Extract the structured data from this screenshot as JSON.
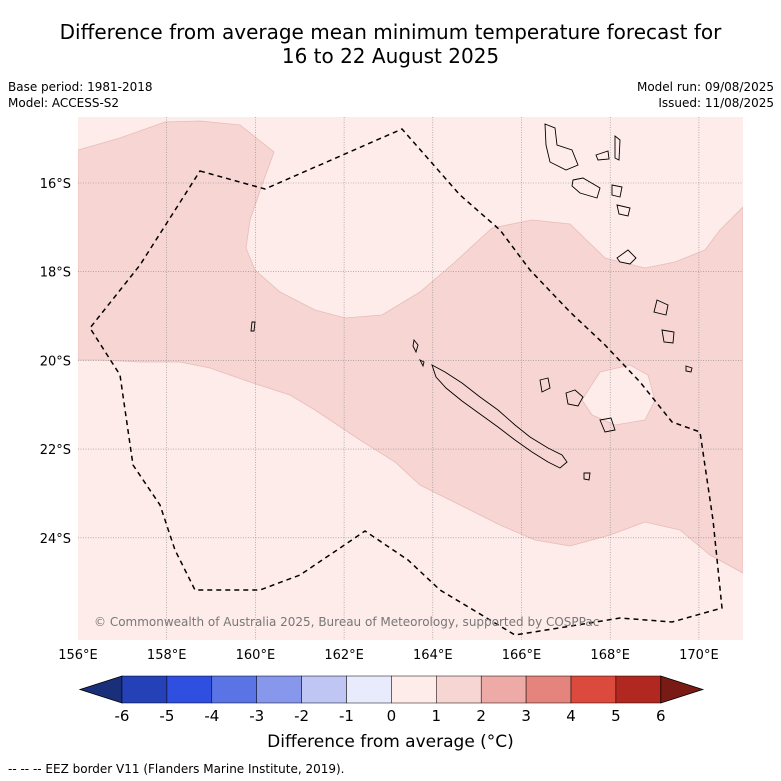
{
  "title_line1": "Difference from average mean minimum temperature forecast for",
  "title_line2": "16 to 22 August 2025",
  "base_period": "Base period: 1981-2018",
  "model": "Model: ACCESS-S2",
  "model_run": "Model run: 09/08/2025",
  "issued": "Issued: 11/08/2025",
  "copyright": "© Commonwealth of Australia 2025, Bureau of Meteorology, supported by COSPPac",
  "lon_labels": [
    "156°E",
    "158°E",
    "160°E",
    "162°E",
    "164°E",
    "166°E",
    "168°E",
    "170°E"
  ],
  "lat_labels": [
    "16°S",
    "18°S",
    "20°S",
    "22°S",
    "24°S"
  ],
  "colorbar": {
    "ticks": [
      "-6",
      "-5",
      "-4",
      "-3",
      "-2",
      "-1",
      "0",
      "1",
      "2",
      "3",
      "4",
      "5",
      "6"
    ],
    "colors": [
      "#1a2f7a",
      "#2441b8",
      "#2f4fe0",
      "#5a74e6",
      "#8797ec",
      "#bfc6f4",
      "#e8ebfb",
      "#fdecea",
      "#f6d5d3",
      "#eeaaa6",
      "#e5847d",
      "#dc4a3e",
      "#b02820",
      "#7a1a14"
    ],
    "label": "Difference from average (°C)"
  },
  "map_fill": {
    "light": "#fdecea",
    "medium": "#f6d5d3"
  },
  "footnote": "-- -- -- EEZ border V11 (Flanders Marine Institute, 2019)."
}
